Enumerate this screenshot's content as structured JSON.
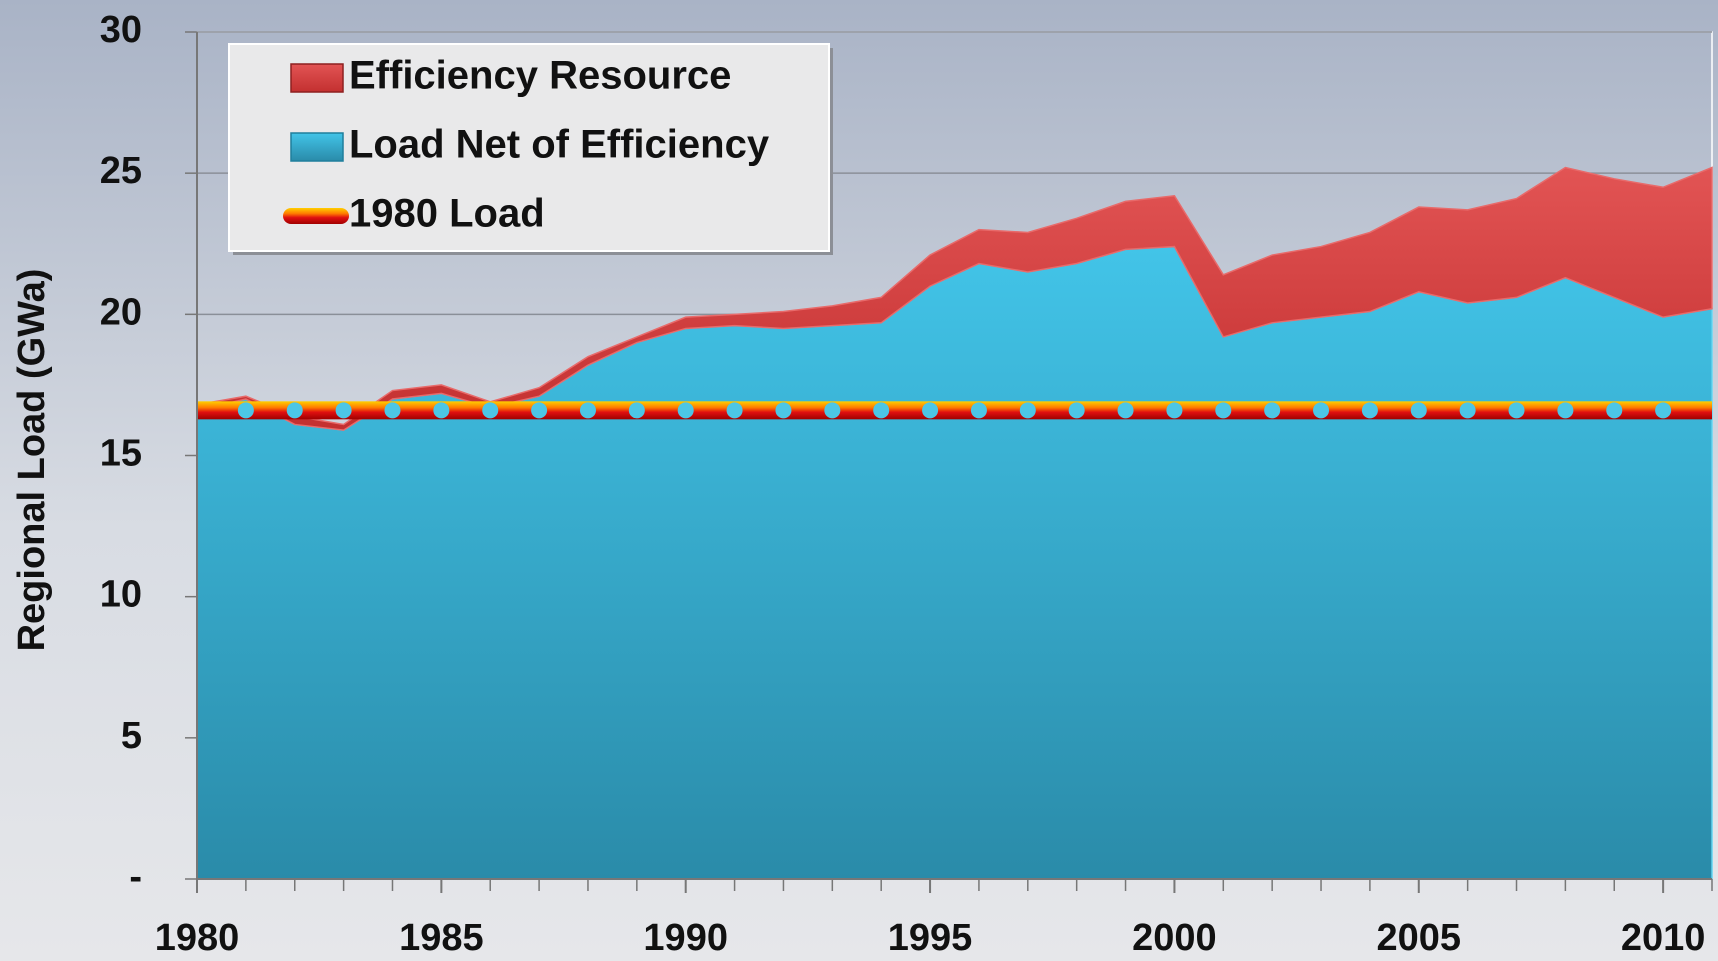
{
  "chart_data": {
    "type": "area",
    "y_label": "Regional Load (GWa)",
    "x": [
      1980,
      1981,
      1982,
      1983,
      1984,
      1985,
      1986,
      1987,
      1988,
      1989,
      1990,
      1991,
      1992,
      1993,
      1994,
      1995,
      1996,
      1997,
      1998,
      1999,
      2000,
      2001,
      2002,
      2003,
      2004,
      2005,
      2006,
      2007,
      2008,
      2009,
      2010,
      2011
    ],
    "series": [
      {
        "name": "Efficiency Resource",
        "color": "#d94444",
        "values": [
          0.2,
          0.1,
          0.3,
          0.2,
          0.3,
          0.3,
          0.2,
          0.3,
          0.3,
          0.2,
          0.4,
          0.4,
          0.6,
          0.7,
          0.9,
          1.1,
          1.2,
          1.4,
          1.6,
          1.7,
          1.8,
          2.2,
          2.4,
          2.5,
          2.8,
          3.0,
          3.3,
          3.5,
          3.9,
          4.2,
          4.6,
          5.0
        ]
      },
      {
        "name": "Load Net of Efficiency",
        "color": "#3fc0e4",
        "values": [
          16.6,
          17.0,
          16.1,
          15.9,
          17.0,
          17.2,
          16.7,
          17.1,
          18.2,
          19.0,
          19.5,
          19.6,
          19.5,
          19.6,
          19.7,
          21.0,
          21.8,
          21.5,
          21.8,
          22.3,
          22.4,
          19.2,
          19.7,
          19.9,
          20.1,
          20.8,
          20.4,
          20.6,
          21.3,
          20.6,
          19.9,
          20.2
        ]
      },
      {
        "name": "1980 Load",
        "color": "#e01010",
        "value": 16.6
      }
    ],
    "stack_order": [
      1,
      0
    ],
    "xlim": [
      1980,
      2011
    ],
    "xticks": [
      1980,
      1985,
      1990,
      1995,
      2000,
      2005,
      2010
    ],
    "ylim": [
      0,
      30
    ],
    "yticks": [
      {
        "value": 0,
        "label": "-"
      },
      5,
      10,
      15,
      20,
      25,
      30
    ],
    "grid": true,
    "legend": "upper left"
  }
}
